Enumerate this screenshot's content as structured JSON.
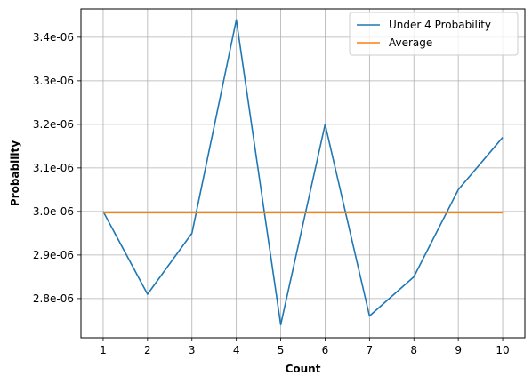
{
  "chart_data": {
    "type": "line",
    "xlabel": "Count",
    "ylabel": "Probability",
    "x": [
      1,
      2,
      3,
      4,
      5,
      6,
      7,
      8,
      9,
      10
    ],
    "xlim": [
      0.5,
      10.5
    ],
    "ylim": [
      2.71e-06,
      3.465e-06
    ],
    "x_ticks": [
      "1",
      "2",
      "3",
      "4",
      "5",
      "6",
      "7",
      "8",
      "9",
      "10"
    ],
    "y_ticks": [
      {
        "value": 2.8e-06,
        "label": "2.8e-06"
      },
      {
        "value": 2.9e-06,
        "label": "2.9e-06"
      },
      {
        "value": 3e-06,
        "label": "3.0e-06"
      },
      {
        "value": 3.1e-06,
        "label": "3.1e-06"
      },
      {
        "value": 3.2e-06,
        "label": "3.2e-06"
      },
      {
        "value": 3.3e-06,
        "label": "3.3e-06"
      },
      {
        "value": 3.4e-06,
        "label": "3.4e-06"
      }
    ],
    "grid": true,
    "legend_position": "top-right",
    "series": [
      {
        "name": " Under 4 Probability",
        "color": "#1f77b4",
        "values": [
          3e-06,
          2.81e-06,
          2.95e-06,
          3.44e-06,
          2.74e-06,
          3.2e-06,
          2.76e-06,
          2.85e-06,
          3.05e-06,
          3.17e-06
        ]
      },
      {
        "name": "Average",
        "color": "#ff7f0e",
        "values": [
          2.997e-06,
          2.997e-06,
          2.997e-06,
          2.997e-06,
          2.997e-06,
          2.997e-06,
          2.997e-06,
          2.997e-06,
          2.997e-06,
          2.997e-06
        ]
      }
    ]
  }
}
